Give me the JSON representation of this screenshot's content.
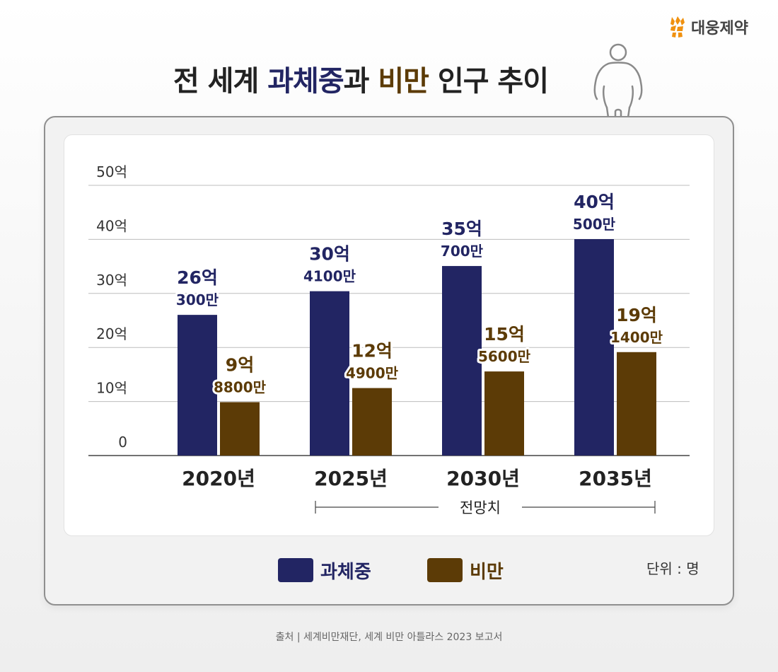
{
  "brand": {
    "name": "대웅제약",
    "icon": "daewoong-bear-logo-icon",
    "color": "#f0910f"
  },
  "title": {
    "part1": "전 세계 ",
    "part2": "과체중",
    "part3": "과 ",
    "part4": "비만",
    "part5": " 인구 추이"
  },
  "legend": {
    "overweight": {
      "label": "과체중",
      "color": "#222563"
    },
    "obese": {
      "label": "비만",
      "color": "#5c3b06"
    }
  },
  "unit": "단위 : 명",
  "source": "출처 | 세계비만재단, 세계 비만 아틀라스 2023 보고서",
  "chart_data": {
    "type": "bar",
    "title": "전 세계 과체중과 비만 인구 추이",
    "categories": [
      "2020년",
      "2025년",
      "2030년",
      "2035년"
    ],
    "ylim": [
      0,
      50
    ],
    "yticks": [
      0,
      10,
      20,
      30,
      40,
      50
    ],
    "ytick_labels": [
      "0",
      "10억",
      "20억",
      "30억",
      "40억",
      "50억"
    ],
    "grid": true,
    "forecast_label": "전망치",
    "forecast_categories": [
      "2025년",
      "2030년",
      "2035년"
    ],
    "series": [
      {
        "name": "과체중",
        "color": "#222563",
        "values": [
          26.03,
          30.41,
          35.07,
          40.05
        ],
        "labels": [
          [
            "26억",
            "300만"
          ],
          [
            "30억",
            "4100만"
          ],
          [
            "35억",
            "700만"
          ],
          [
            "40억",
            "500만"
          ]
        ]
      },
      {
        "name": "비만",
        "color": "#5c3b06",
        "values": [
          9.88,
          12.49,
          15.56,
          19.14
        ],
        "labels": [
          [
            "9억",
            "8800만"
          ],
          [
            "12억",
            "4900만"
          ],
          [
            "15억",
            "5600만"
          ],
          [
            "19억",
            "1400만"
          ]
        ]
      }
    ]
  }
}
